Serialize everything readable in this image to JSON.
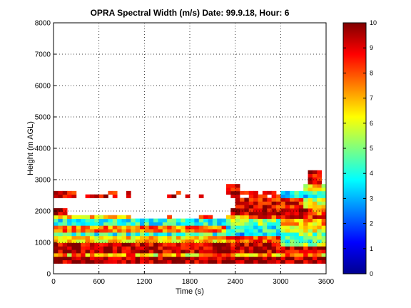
{
  "chart_data": {
    "type": "heatmap",
    "title": "OPRA Spectral Width (m/s)  Date: 99.9.18, Hour: 6",
    "xlabel": "Time (s)",
    "ylabel": "Height (m AGL)",
    "xlim": [
      0,
      3600
    ],
    "ylim": [
      0,
      8000
    ],
    "x_ticks": [
      0,
      600,
      1200,
      1800,
      2400,
      3000,
      3600
    ],
    "y_ticks": [
      0,
      1000,
      2000,
      3000,
      4000,
      5000,
      6000,
      7000,
      8000
    ],
    "grid": true,
    "colormap": "jet",
    "colorbar": {
      "range": [
        0,
        10
      ],
      "ticks": [
        0,
        1,
        2,
        3,
        4,
        5,
        6,
        7,
        8,
        9,
        10
      ],
      "position": "right"
    },
    "approx_field": {
      "time_bin_s": 60,
      "height_bin_m": 110,
      "description_rows_by_height_m": [
        {
          "h": [
            300,
            550
          ],
          "t": [
            0,
            3600
          ],
          "v": 9.6
        },
        {
          "h": [
            550,
            700
          ],
          "t": [
            0,
            3600
          ],
          "v": 7.2
        },
        {
          "h": [
            700,
            1000
          ],
          "t": [
            0,
            3000
          ],
          "v": 9.4
        },
        {
          "h": [
            1000,
            1200
          ],
          "t": [
            0,
            2300
          ],
          "v": 6.5
        },
        {
          "h": [
            1200,
            1350
          ],
          "t": [
            0,
            2300
          ],
          "v": 4.2
        },
        {
          "h": [
            1350,
            1550
          ],
          "t": [
            0,
            2300
          ],
          "v": 7.6
        },
        {
          "h": [
            1550,
            1750
          ],
          "t": [
            0,
            2300
          ],
          "v": 4.0
        },
        {
          "h": [
            1750,
            1900
          ],
          "t": [
            0,
            1000
          ],
          "v": 6.8
        },
        {
          "h": [
            1900,
            2100
          ],
          "t": [
            2350,
            3300
          ],
          "v": 9.2
        },
        {
          "h": [
            2100,
            2400
          ],
          "t": [
            2400,
            3300
          ],
          "v": 8.8
        },
        {
          "h": [
            2400,
            2650
          ],
          "t": [
            3000,
            3600
          ],
          "v": 3.8
        },
        {
          "h": [
            2650,
            2850
          ],
          "t": [
            3300,
            3600
          ],
          "v": 6.5
        }
      ]
    }
  }
}
